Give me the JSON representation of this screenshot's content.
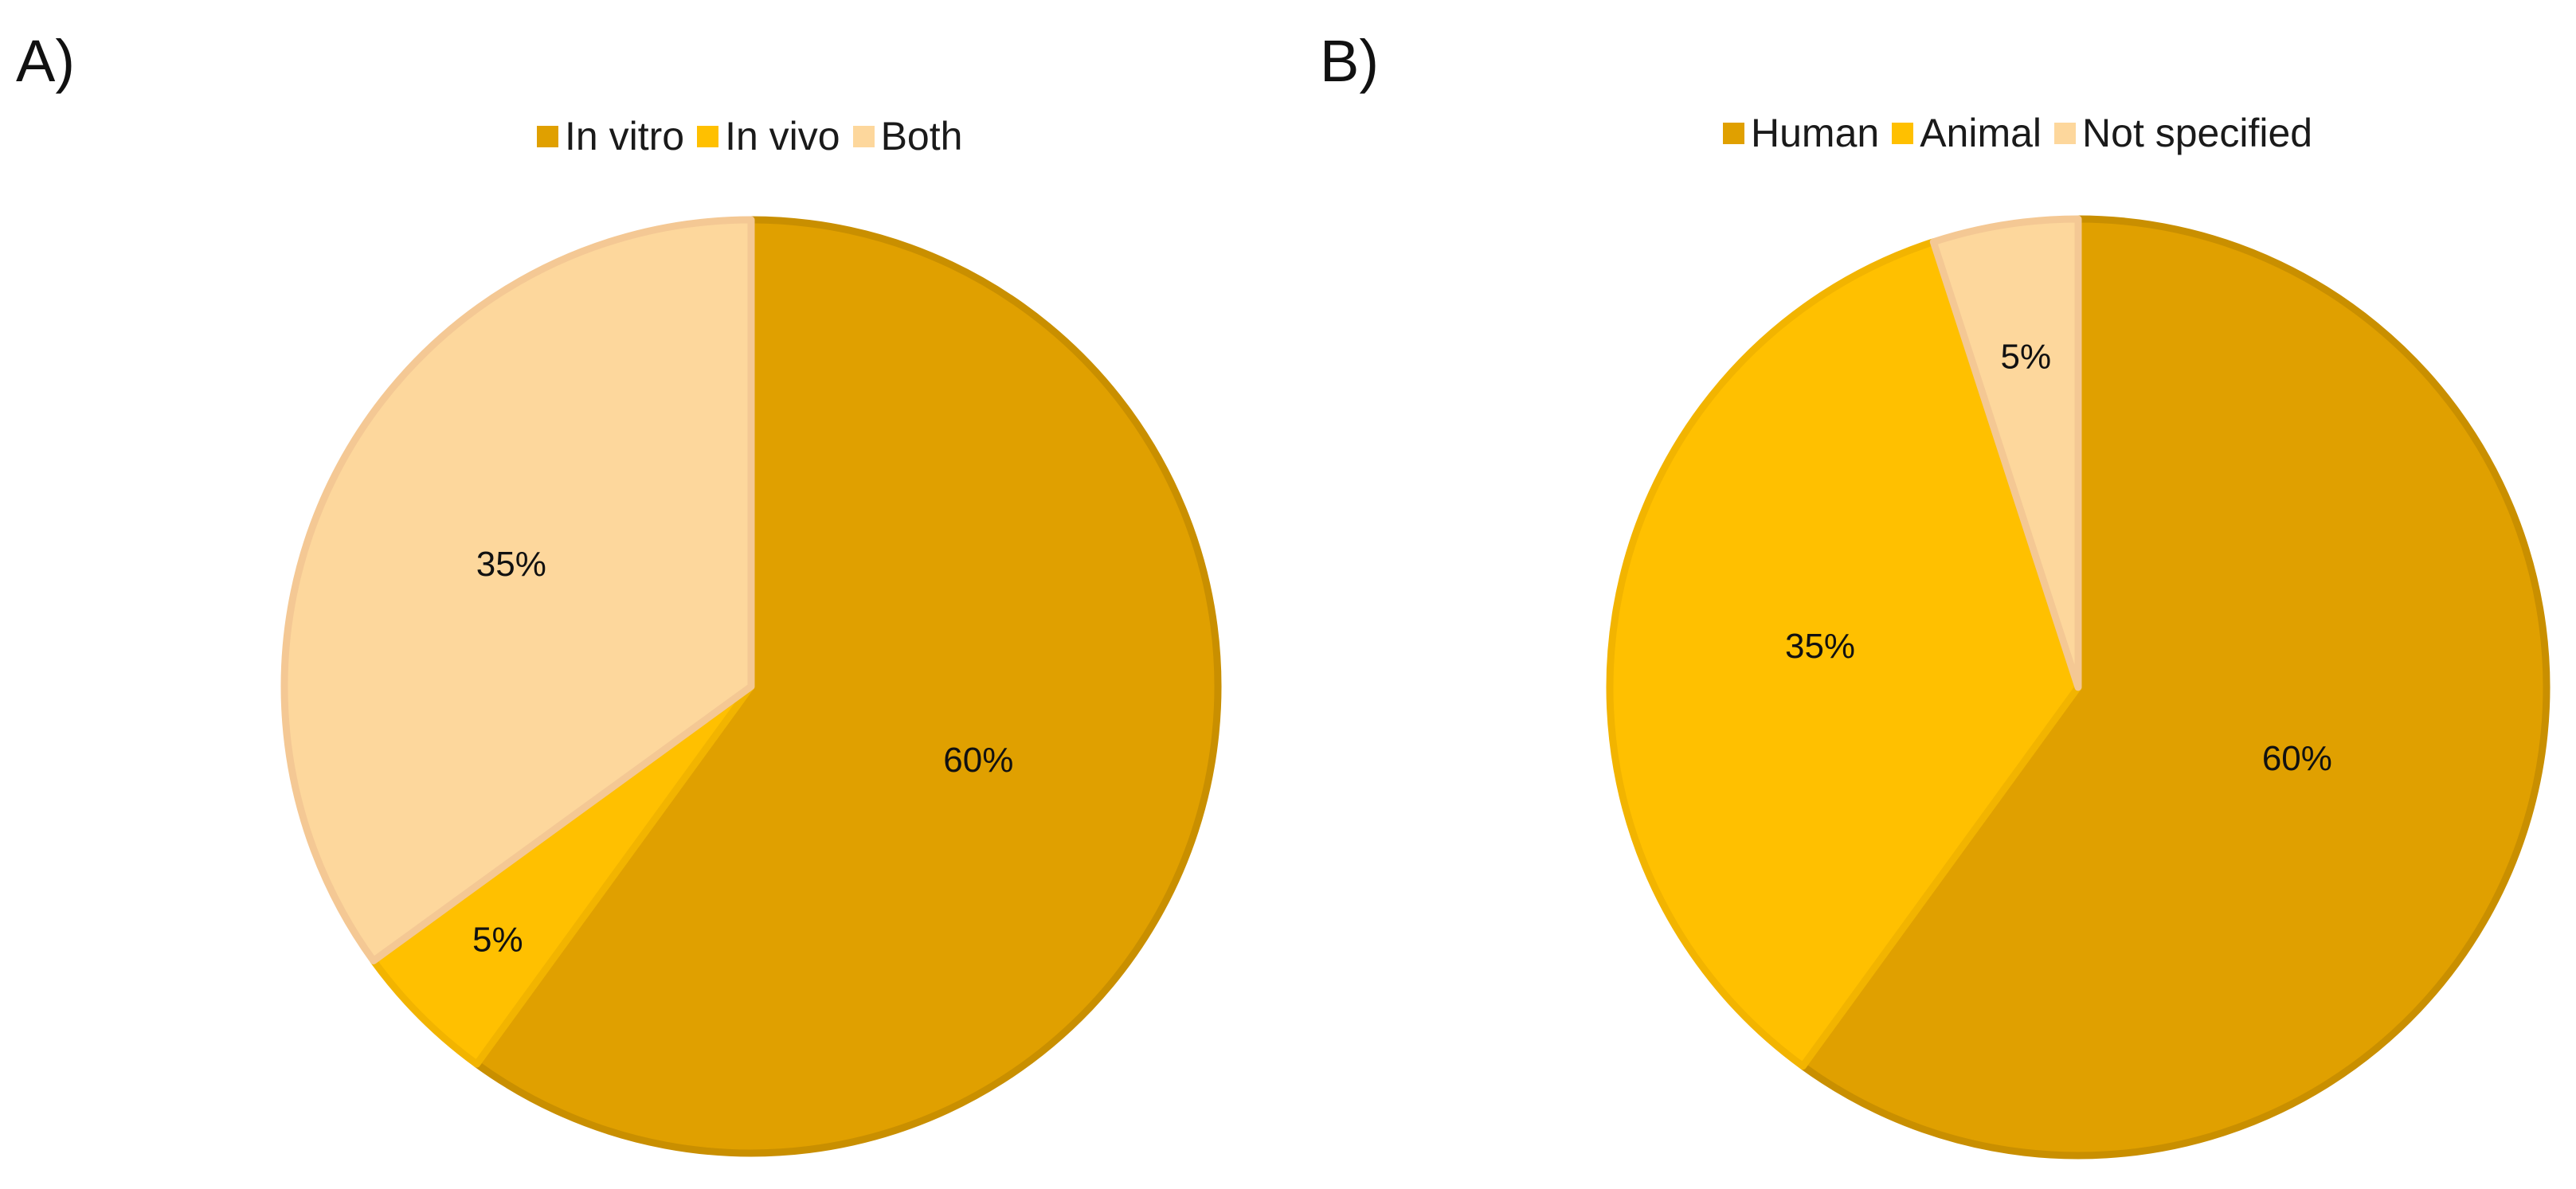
{
  "chart_data": [
    {
      "type": "pie",
      "panel_label": "A)",
      "legend_placement": "top",
      "categories": [
        "In vitro",
        "In vivo",
        "Both"
      ],
      "values": [
        60,
        5,
        35
      ],
      "labels": [
        "60%",
        "5%",
        "35%"
      ],
      "colors": [
        "#E0A000",
        "#FFC000",
        "#FDD79C"
      ],
      "edge_colors": [
        "#C98F00",
        "#F2B400",
        "#F4C894"
      ]
    },
    {
      "type": "pie",
      "panel_label": "B)",
      "legend_placement": "top",
      "categories": [
        "Human",
        "Animal",
        "Not specified"
      ],
      "values": [
        60,
        35,
        5
      ],
      "labels": [
        "60%",
        "35%",
        "5%"
      ],
      "colors": [
        "#E0A000",
        "#FFC000",
        "#FDD79C"
      ],
      "edge_colors": [
        "#C98F00",
        "#F2B400",
        "#F4C894"
      ]
    }
  ]
}
